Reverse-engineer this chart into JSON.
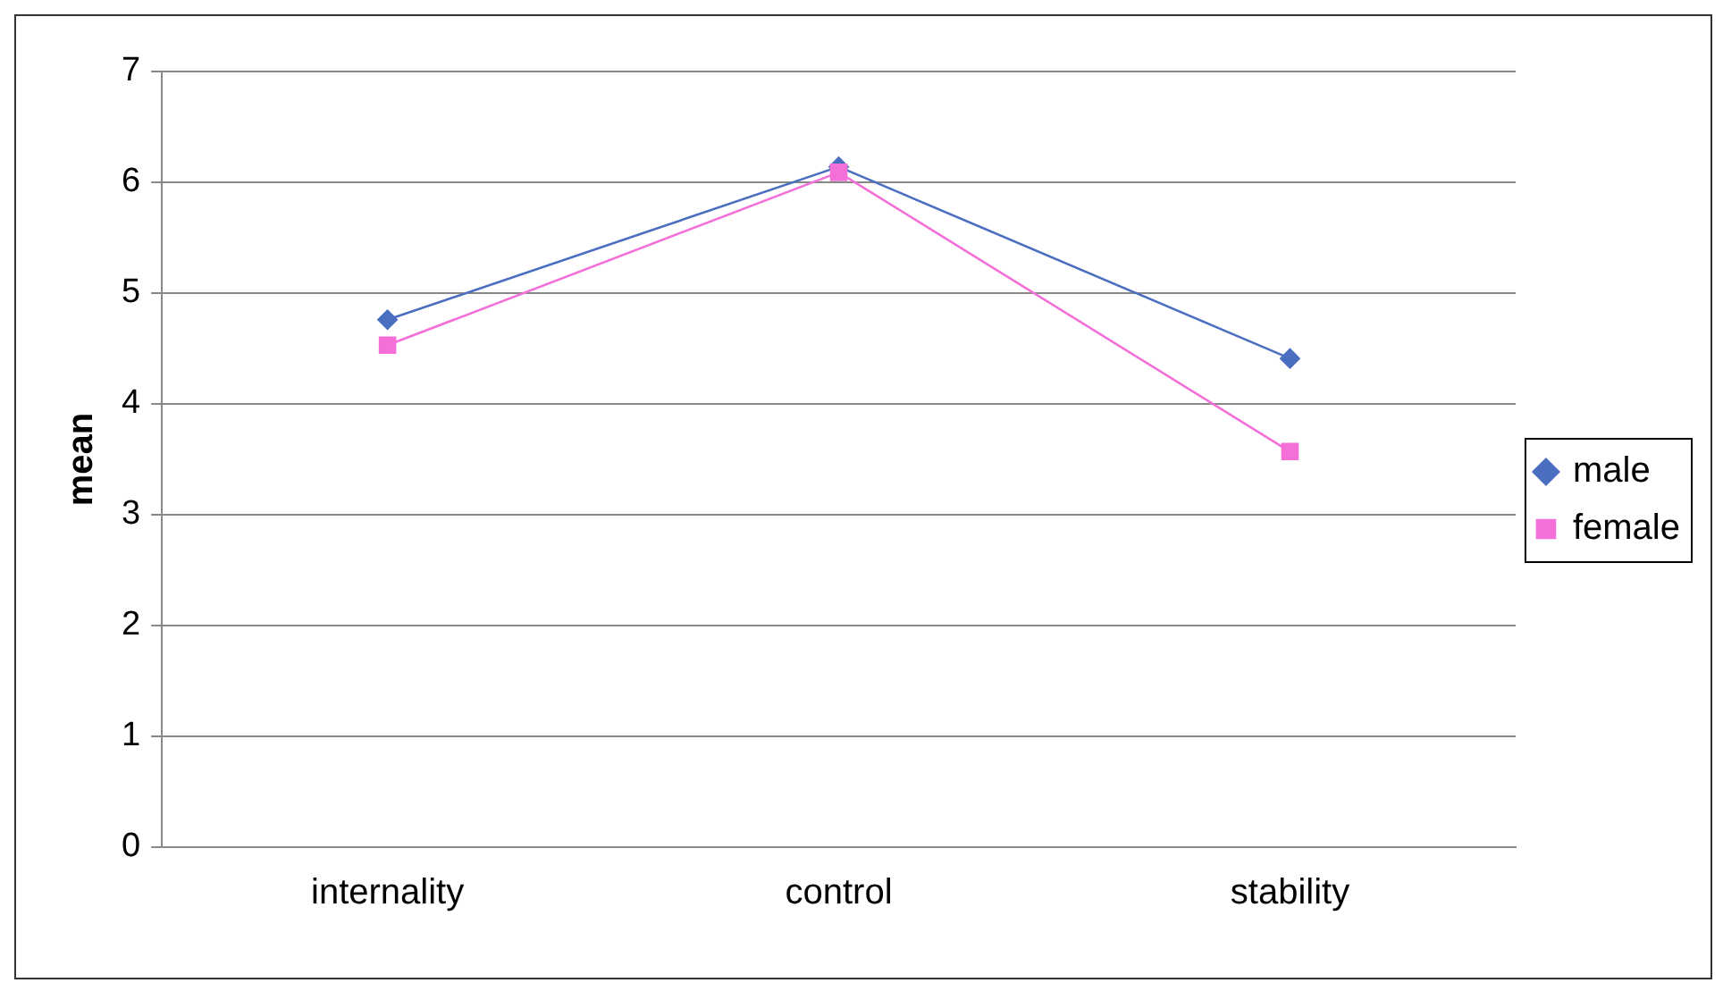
{
  "chart_data": {
    "type": "line",
    "ylabel": "mean",
    "categories": [
      "internality",
      "control",
      "stability"
    ],
    "series": [
      {
        "name": "male",
        "color": "#4a6ec0",
        "marker": "diamond",
        "values": [
          4.76,
          6.14,
          4.41
        ]
      },
      {
        "name": "female",
        "color": "#f470d8",
        "marker": "square",
        "values": [
          4.53,
          6.09,
          3.57
        ]
      }
    ],
    "ylim": [
      0,
      7
    ],
    "yticks": [
      0,
      1,
      2,
      3,
      4,
      5,
      6,
      7
    ],
    "grid": "y",
    "legend": "right",
    "line_style": "solid"
  }
}
